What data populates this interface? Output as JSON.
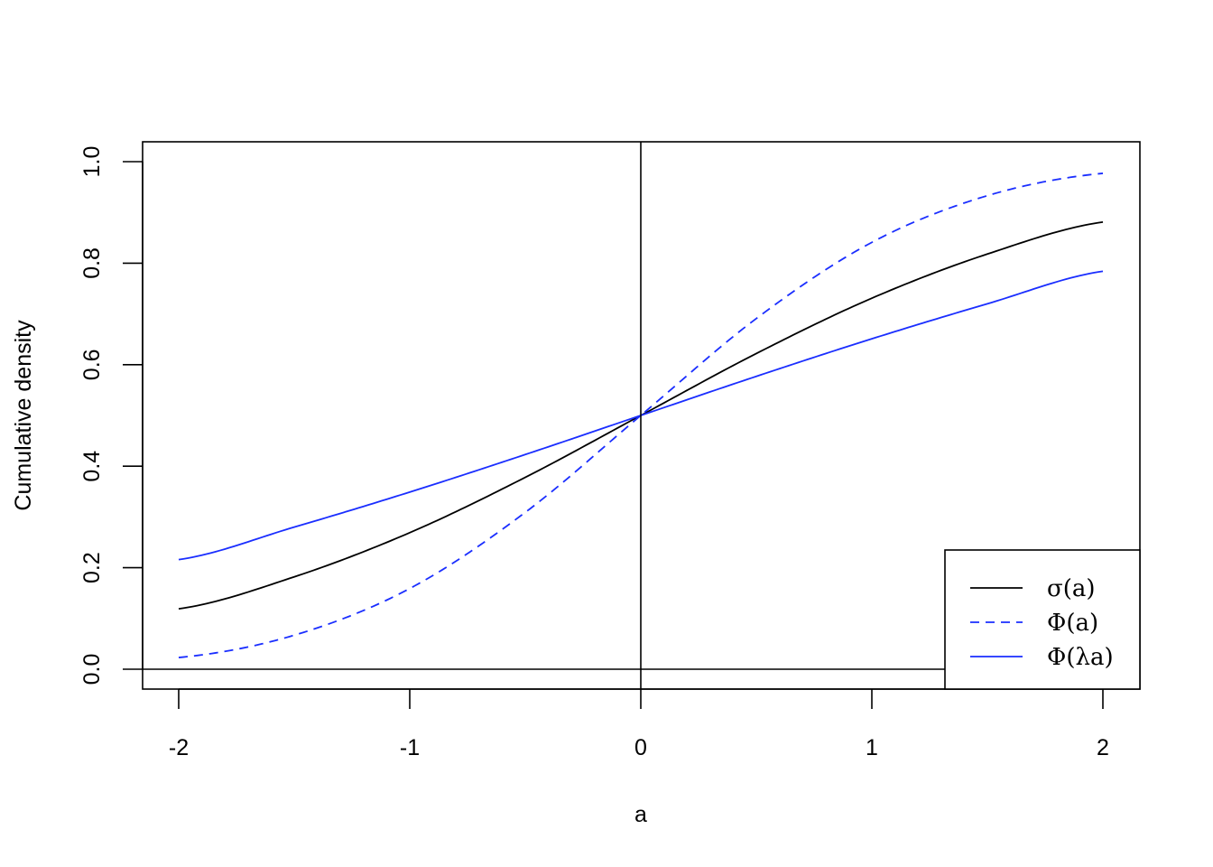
{
  "chart_data": {
    "type": "line",
    "title": "",
    "xlabel": "a",
    "ylabel": "Cumulative density",
    "xlim": [
      -2,
      2
    ],
    "ylim": [
      0,
      1
    ],
    "x_ticks": [
      -2,
      -1,
      0,
      1,
      2
    ],
    "x_tick_labels": [
      "-2",
      "-1",
      "0",
      "1",
      "2"
    ],
    "y_ticks": [
      0,
      0.2,
      0.4,
      0.6,
      0.8,
      1
    ],
    "y_tick_labels": [
      "0.0",
      "0.2",
      "0.4",
      "0.6",
      "0.8",
      "1.0"
    ],
    "grid": false,
    "reference_lines": [
      {
        "orientation": "horizontal",
        "value": 0
      },
      {
        "orientation": "vertical",
        "value": 0
      }
    ],
    "x": [
      -2,
      -1.5,
      -1,
      -0.5,
      0,
      0.5,
      1,
      1.5,
      2
    ],
    "series": [
      {
        "name": "σ(a)",
        "color": "#000000",
        "dash": "solid",
        "values": [
          0.119,
          0.182,
          0.269,
          0.378,
          0.5,
          0.622,
          0.731,
          0.818,
          0.881
        ]
      },
      {
        "name": "Φ(a)",
        "color": "#1a2eff",
        "dash": "dashed",
        "values": [
          0.023,
          0.067,
          0.159,
          0.309,
          0.5,
          0.691,
          0.841,
          0.933,
          0.977
        ]
      },
      {
        "name": "Φ(λa)",
        "color": "#1a2eff",
        "dash": "solid",
        "values": [
          0.216,
          0.28,
          0.349,
          0.423,
          0.5,
          0.577,
          0.651,
          0.72,
          0.784
        ]
      }
    ],
    "legend": {
      "position": "bottom-right",
      "entries": [
        "σ(a)",
        "Φ(a)",
        "Φ(λa)"
      ]
    }
  }
}
